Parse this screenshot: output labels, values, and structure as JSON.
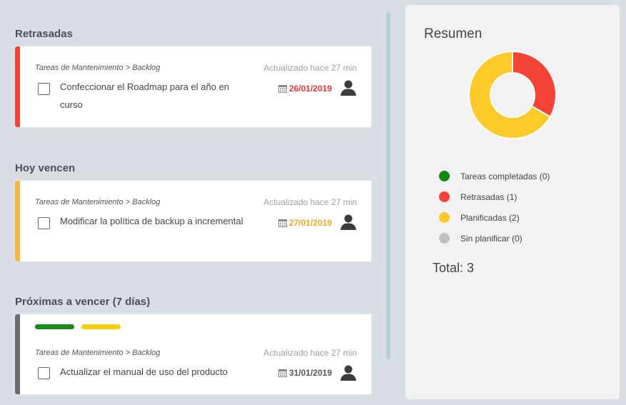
{
  "sections": {
    "overdue": {
      "title": "Retrasadas",
      "color": "#f44336",
      "card": {
        "breadcrumb": "Tareas de Mantenimiento > Backlog",
        "updated": "Actualizado hace 27 min",
        "task": "Confeccionar el Roadmap para el año en curso",
        "due_date": "26/01/2019",
        "due_color": "#e53935"
      }
    },
    "today": {
      "title": "Hoy vencen",
      "color": "#f5b740",
      "card": {
        "breadcrumb": "Tareas de Mantenimiento > Backlog",
        "updated": "Actualizado hace 27 min",
        "task": "Modificar la política de backup a incremental",
        "due_date": "27/01/2019",
        "due_color": "#f0a92b"
      }
    },
    "upcoming": {
      "title": "Próximas a vencer (7 días)",
      "color": "#666c73",
      "tags": [
        "#1a8a1a",
        "#f5cf10"
      ],
      "card": {
        "breadcrumb": "Tareas de Mantenimiento > Backlog",
        "updated": "Actualizado hace 27 min",
        "task": "Actualizar el manual de uso del producto",
        "due_date": "31/01/2019",
        "due_color": "#555555"
      }
    }
  },
  "summary": {
    "title": "Resumen",
    "total_label": "Total: 3",
    "legend": [
      {
        "label": "Tareas completadas (0)",
        "color": "#0e8a0e",
        "count": 0
      },
      {
        "label": "Retrasadas (1)",
        "color": "#f44336",
        "count": 1
      },
      {
        "label": "Planificadas (2)",
        "color": "#fdca2a",
        "count": 2
      },
      {
        "label": "Sin planificar (0)",
        "color": "#c0c0c0",
        "count": 0
      }
    ]
  }
}
